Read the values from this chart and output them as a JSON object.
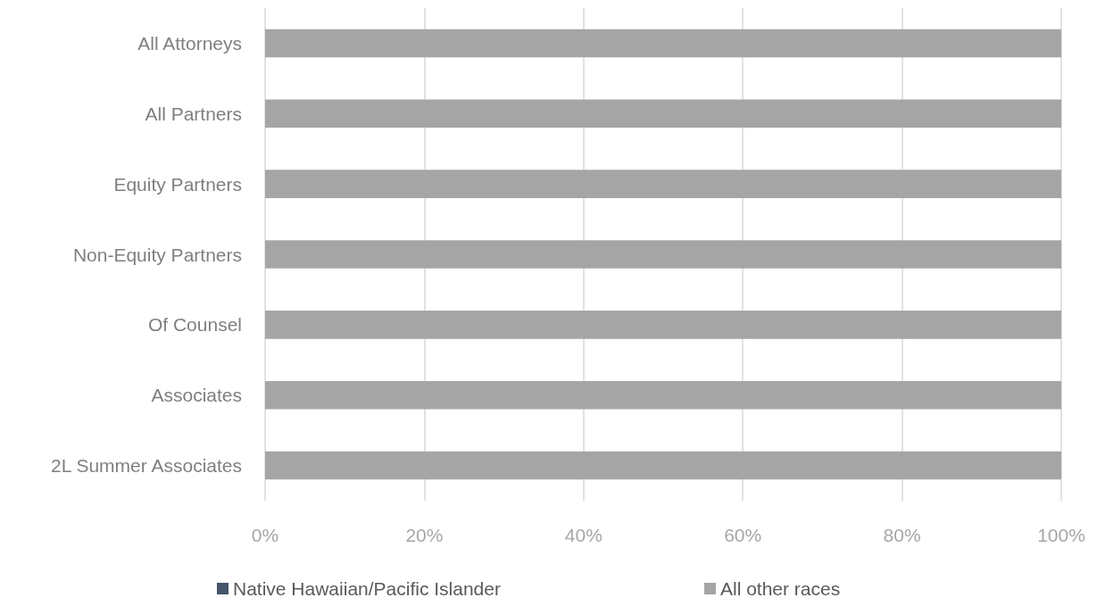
{
  "chart_data": {
    "type": "bar",
    "orientation": "horizontal",
    "stacked": true,
    "categories": [
      "All Attorneys",
      "All Partners",
      "Equity Partners",
      "Non-Equity Partners",
      "Of Counsel",
      "Associates",
      "2L Summer Associates"
    ],
    "series": [
      {
        "name": "Native Hawaiian/Pacific Islander",
        "color": "#44546a",
        "values": [
          0,
          0,
          0,
          0,
          0,
          0,
          0
        ]
      },
      {
        "name": "All other races",
        "color": "#a5a5a5",
        "values": [
          100,
          100,
          100,
          100,
          100,
          100,
          100
        ]
      }
    ],
    "xlim": [
      0,
      100
    ],
    "xticks": [
      {
        "value": 0,
        "label": "0%"
      },
      {
        "value": 20,
        "label": "20%"
      },
      {
        "value": 40,
        "label": "40%"
      },
      {
        "value": 60,
        "label": "60%"
      },
      {
        "value": 80,
        "label": "80%"
      },
      {
        "value": 100,
        "label": "100%"
      }
    ],
    "grid": "x",
    "legend": "bottom"
  }
}
